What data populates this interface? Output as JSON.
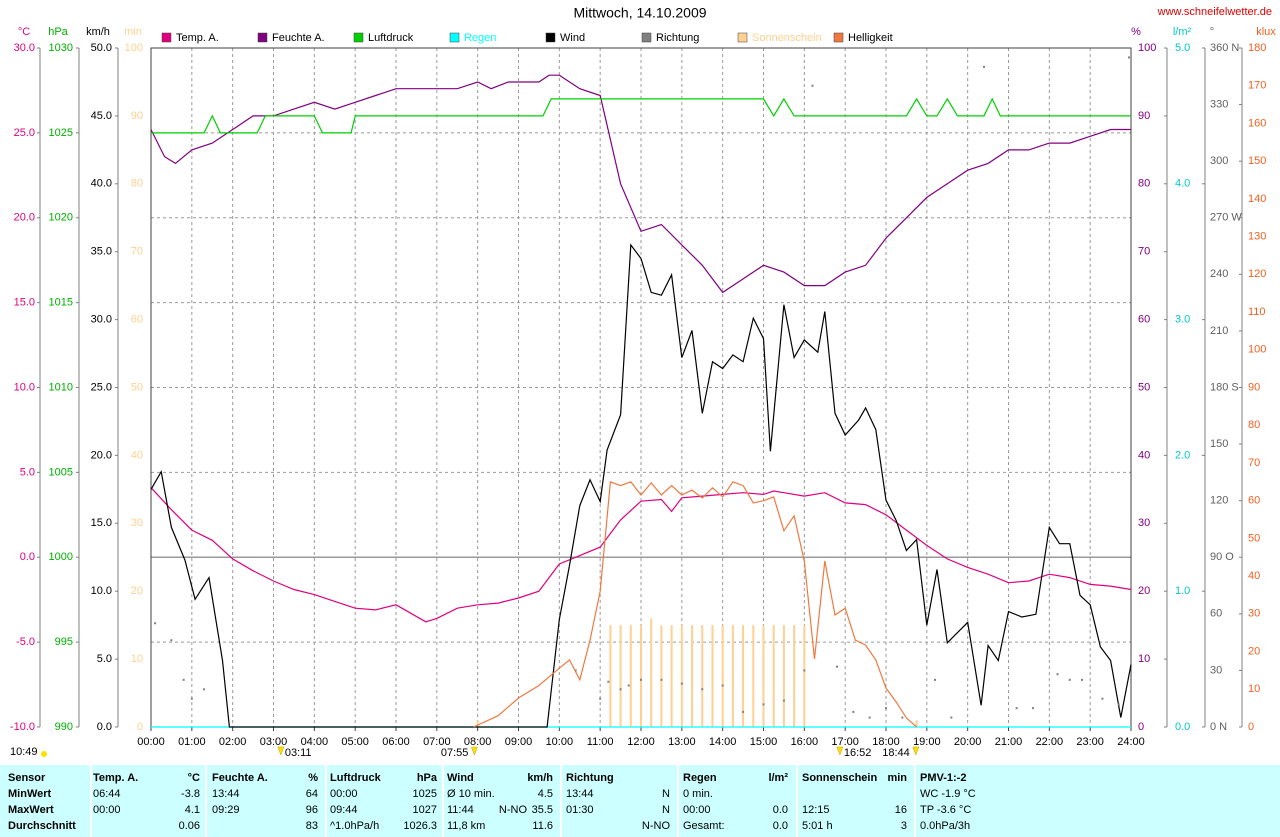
{
  "chart_data": {
    "type": "line",
    "title": "Mittwoch, 14.10.2009",
    "source": "www.schneifelwetter.de",
    "day_length": "10:49",
    "xlim": [
      0,
      24
    ],
    "xticks": [
      {
        "value": 0,
        "label": "00:00"
      },
      {
        "value": 1,
        "label": "01:00"
      },
      {
        "value": 2,
        "label": "02:00"
      },
      {
        "value": 3,
        "label": "03:00"
      },
      {
        "value": 4,
        "label": "04:00"
      },
      {
        "value": 5,
        "label": "05:00"
      },
      {
        "value": 6,
        "label": "06:00"
      },
      {
        "value": 7,
        "label": "07:00"
      },
      {
        "value": 8,
        "label": "08:00"
      },
      {
        "value": 9,
        "label": "09:00"
      },
      {
        "value": 10,
        "label": "10:00"
      },
      {
        "value": 11,
        "label": "11:00"
      },
      {
        "value": 12,
        "label": "12:00"
      },
      {
        "value": 13,
        "label": "13:00"
      },
      {
        "value": 14,
        "label": "14:00"
      },
      {
        "value": 15,
        "label": "15:00"
      },
      {
        "value": 16,
        "label": "16:00"
      },
      {
        "value": 17,
        "label": "17:00"
      },
      {
        "value": 18,
        "label": "18:00"
      },
      {
        "value": 19,
        "label": "19:00"
      },
      {
        "value": 20,
        "label": "20:00"
      },
      {
        "value": 21,
        "label": "21:00"
      },
      {
        "value": 22,
        "label": "22:00"
      },
      {
        "value": 23,
        "label": "23:00"
      },
      {
        "value": 24,
        "label": "24:00"
      }
    ],
    "grid": true,
    "grid_axis": "temp",
    "axes": [
      {
        "id": "temp",
        "label": "°C",
        "color": "#e0007f",
        "ylim": [
          -10,
          30
        ],
        "yticks": [
          {
            "value": -10,
            "label": "-10.0"
          },
          {
            "value": -5,
            "label": "-5.0"
          },
          {
            "value": 0,
            "label": "0.0"
          },
          {
            "value": 5,
            "label": "5.0"
          },
          {
            "value": 10,
            "label": "10.0"
          },
          {
            "value": 15,
            "label": "15.0"
          },
          {
            "value": 20,
            "label": "20.0"
          },
          {
            "value": 25,
            "label": "25.0"
          },
          {
            "value": 30,
            "label": "30.0"
          }
        ]
      },
      {
        "id": "hpa",
        "label": "hPa",
        "color": "#00b000",
        "ylim": [
          990,
          1030
        ],
        "yticks": [
          990,
          995,
          1000,
          1005,
          1010,
          1015,
          1020,
          1025,
          1030
        ]
      },
      {
        "id": "kmh",
        "label": "km/h",
        "color": "#000000",
        "ylim": [
          0,
          50
        ],
        "yticks": [
          {
            "value": 0,
            "label": "0.0"
          },
          {
            "value": 5,
            "label": "5.0"
          },
          {
            "value": 10,
            "label": "10.0"
          },
          {
            "value": 15,
            "label": "15.0"
          },
          {
            "value": 20,
            "label": "20.0"
          },
          {
            "value": 25,
            "label": "25.0"
          },
          {
            "value": 30,
            "label": "30.0"
          },
          {
            "value": 35,
            "label": "35.0"
          },
          {
            "value": 40,
            "label": "40.0"
          },
          {
            "value": 45,
            "label": "45.0"
          },
          {
            "value": 50,
            "label": "50.0"
          }
        ]
      },
      {
        "id": "min",
        "label": "min",
        "color": "#ffd090",
        "ylim": [
          0,
          100
        ],
        "yticks": [
          0,
          10,
          20,
          30,
          40,
          50,
          60,
          70,
          80,
          90,
          100
        ]
      },
      {
        "id": "pct",
        "label": "%",
        "color": "#800080",
        "ylim": [
          0,
          100
        ],
        "yticks": [
          0,
          10,
          20,
          30,
          40,
          50,
          60,
          70,
          80,
          90,
          100
        ]
      },
      {
        "id": "rain",
        "label": "l/m²",
        "color": "#00c8c8",
        "ylim": [
          0,
          5
        ],
        "yticks": [
          {
            "value": 0,
            "label": "0.0"
          },
          {
            "value": 1,
            "label": "1.0"
          },
          {
            "value": 2,
            "label": "2.0"
          },
          {
            "value": 3,
            "label": "3.0"
          },
          {
            "value": 4,
            "label": "4.0"
          },
          {
            "value": 5,
            "label": "5.0"
          }
        ]
      },
      {
        "id": "dir",
        "label": "°",
        "color": "#606060",
        "ylim": [
          0,
          360
        ],
        "yticks": [
          {
            "value": 0,
            "label": "0 N"
          },
          30,
          60,
          {
            "value": 90,
            "label": "90 O"
          },
          120,
          150,
          {
            "value": 180,
            "label": "180 S"
          },
          210,
          240,
          {
            "value": 270,
            "label": "270 W"
          },
          300,
          330,
          {
            "value": 360,
            "label": "360 N"
          }
        ]
      },
      {
        "id": "klux",
        "label": "klux",
        "color": "#f06020",
        "ylim": [
          0,
          180
        ],
        "yticks": [
          0,
          10,
          20,
          30,
          40,
          50,
          60,
          70,
          80,
          90,
          100,
          110,
          120,
          130,
          140,
          150,
          160,
          170,
          180
        ]
      }
    ],
    "series": [
      {
        "name": "Temp. A.",
        "color": "#e0007f",
        "axis": "temp",
        "kind": "line",
        "x": [
          0,
          0.5,
          1,
          1.5,
          2,
          2.5,
          3,
          3.5,
          4,
          4.5,
          5,
          5.5,
          6,
          6.73,
          7,
          7.5,
          8,
          8.5,
          9,
          9.5,
          10,
          10.5,
          11,
          11.5,
          12,
          12.5,
          12.75,
          13,
          13.5,
          14,
          14.5,
          15,
          15.25,
          15.5,
          16,
          16.5,
          17,
          17.5,
          18,
          18.5,
          19,
          19.5,
          20,
          20.5,
          21,
          21.5,
          22,
          22.5,
          23,
          23.5,
          24
        ],
        "values": [
          4.1,
          2.8,
          1.6,
          1.0,
          -0.1,
          -0.8,
          -1.4,
          -1.9,
          -2.2,
          -2.6,
          -3.0,
          -3.1,
          -2.8,
          -3.8,
          -3.6,
          -3.0,
          -2.8,
          -2.7,
          -2.4,
          -2.0,
          -0.4,
          0.1,
          0.6,
          2.2,
          3.3,
          3.4,
          2.7,
          3.5,
          3.6,
          3.7,
          3.8,
          3.7,
          3.9,
          3.8,
          3.6,
          3.8,
          3.2,
          3.1,
          2.5,
          1.6,
          0.7,
          -0.1,
          -0.6,
          -1.0,
          -1.5,
          -1.4,
          -1.0,
          -1.2,
          -1.6,
          -1.7,
          -1.9
        ]
      },
      {
        "name": "Feuchte A.",
        "color": "#800080",
        "axis": "pct",
        "kind": "line",
        "x": [
          0,
          0.33,
          0.6,
          1,
          1.5,
          2,
          2.5,
          3,
          3.5,
          4,
          4.5,
          5,
          5.5,
          6,
          6.5,
          7,
          7.5,
          8,
          8.33,
          8.75,
          9.5,
          9.75,
          10,
          10.5,
          11,
          11.5,
          12,
          12.5,
          13,
          13.5,
          14,
          14.5,
          15,
          15.5,
          16,
          16.5,
          17,
          17.5,
          18,
          18.5,
          19,
          19.5,
          20,
          20.5,
          21,
          21.5,
          22,
          22.5,
          23,
          23.5,
          24
        ],
        "values": [
          88,
          84,
          83,
          85,
          86,
          88,
          90,
          90,
          91,
          92,
          91,
          92,
          93,
          94,
          94,
          94,
          94,
          95,
          94,
          95,
          95,
          96,
          96,
          94,
          93,
          80,
          73,
          74,
          71,
          68,
          64,
          66,
          68,
          67,
          65,
          65,
          67,
          68,
          72,
          75,
          78,
          80,
          82,
          83,
          85,
          85,
          86,
          86,
          87,
          88,
          88
        ]
      },
      {
        "name": "Luftdruck",
        "color": "#00d000",
        "axis": "hpa",
        "kind": "line",
        "x": [
          0,
          1.3,
          1.5,
          1.7,
          2.6,
          2.8,
          4.0,
          4.2,
          4.9,
          5.0,
          9.6,
          9.8,
          15.0,
          15.25,
          15.5,
          15.75,
          18.5,
          18.75,
          19.0,
          19.25,
          19.5,
          19.75,
          20.4,
          20.6,
          20.8,
          24
        ],
        "values": [
          1025,
          1025,
          1026,
          1025,
          1025,
          1026,
          1026,
          1025,
          1025,
          1026,
          1026,
          1027,
          1027,
          1026,
          1027,
          1026,
          1026,
          1027,
          1026,
          1026,
          1027,
          1026,
          1026,
          1027,
          1026,
          1026
        ]
      },
      {
        "name": "Regen",
        "color": "#00ffff",
        "axis": "rain",
        "kind": "line",
        "x": [
          0,
          24
        ],
        "values": [
          0,
          0
        ]
      },
      {
        "name": "Wind",
        "color": "#000000",
        "axis": "kmh",
        "kind": "line",
        "x": [
          0,
          0.25,
          0.5,
          0.83,
          1.08,
          1.42,
          1.75,
          1.92,
          9.7,
          10,
          10.25,
          10.5,
          10.75,
          11,
          11.17,
          11.5,
          11.75,
          12,
          12.25,
          12.5,
          12.75,
          13,
          13.25,
          13.5,
          13.75,
          14,
          14.25,
          14.5,
          14.75,
          15,
          15.17,
          15.5,
          15.75,
          16,
          16.33,
          16.5,
          16.75,
          17,
          17.33,
          17.5,
          17.75,
          18,
          18.25,
          18.5,
          18.75,
          19,
          19.25,
          19.5,
          20,
          20.33,
          20.5,
          20.75,
          21,
          21.33,
          21.67,
          22,
          22.25,
          22.5,
          22.75,
          23,
          23.25,
          23.5,
          23.75,
          24
        ],
        "values": [
          17.5,
          18.8,
          14.7,
          12.3,
          9.4,
          11,
          4.9,
          0,
          0,
          7.9,
          11.9,
          16.3,
          18.2,
          16.6,
          20.4,
          23,
          35.5,
          34.5,
          32,
          31.8,
          33.3,
          27.2,
          29.2,
          23.1,
          26.9,
          26.4,
          27.4,
          26.9,
          30.1,
          28.6,
          20.3,
          31.1,
          27.2,
          28.5,
          27.6,
          30.6,
          23.1,
          21.5,
          22.6,
          23.5,
          21.9,
          16.7,
          15.2,
          13,
          13.8,
          7.5,
          11.6,
          6.2,
          7.7,
          1.6,
          6,
          4.9,
          8.5,
          8.1,
          8.3,
          14.7,
          13.5,
          13.5,
          9.7,
          9,
          5.9,
          4.9,
          0.7,
          4.6
        ]
      },
      {
        "name": "Richtung",
        "color": "#808080",
        "axis": "dir",
        "kind": "dots",
        "x": [
          0.1,
          0.5,
          0.8,
          1.0,
          1.3,
          10.4,
          11.0,
          11.2,
          11.5,
          11.7,
          12.0,
          12.5,
          13.0,
          13.5,
          14.0,
          14.5,
          15.0,
          15.5,
          16.0,
          16.2,
          16.8,
          17.2,
          17.6,
          18.0,
          18.4,
          19.2,
          19.6,
          20.4,
          21.2,
          21.6,
          22.2,
          22.5,
          22.8,
          23.3,
          23.7,
          23.95
        ],
        "values": [
          55,
          46,
          25,
          15,
          20,
          30,
          15,
          24,
          20,
          22,
          25,
          25,
          23,
          20,
          22,
          8,
          12,
          14,
          30,
          340,
          32,
          8,
          5,
          10,
          5,
          25,
          5,
          350,
          10,
          10,
          28,
          25,
          25,
          15,
          12,
          355
        ]
      },
      {
        "name": "Sonnenschein",
        "color": "#ffd090",
        "axis": "min",
        "kind": "bar",
        "x": [
          8,
          11.25,
          11.5,
          11.75,
          12,
          12.25,
          12.5,
          12.75,
          13,
          13.25,
          13.5,
          13.75,
          14,
          14.25,
          14.5,
          14.75,
          15,
          15.25,
          15.5,
          15.75,
          16,
          18.75
        ],
        "values": [
          1,
          15,
          15,
          15,
          15,
          16,
          15,
          15,
          15,
          15,
          15,
          15,
          15,
          15,
          15,
          15,
          15,
          15,
          15,
          15,
          15,
          1
        ]
      },
      {
        "name": "Helligkeit",
        "color": "#f07840",
        "axis": "klux",
        "kind": "line",
        "x": [
          7.9,
          8.5,
          9,
          9.5,
          10,
          10.25,
          10.5,
          10.75,
          11,
          11.25,
          11.5,
          11.75,
          12,
          12.25,
          12.5,
          12.75,
          13,
          13.25,
          13.5,
          13.75,
          14,
          14.25,
          14.5,
          14.75,
          15,
          15.25,
          15.5,
          15.75,
          16,
          16.25,
          16.5,
          16.75,
          17,
          17.25,
          17.5,
          17.75,
          18,
          18.25,
          18.5,
          18.75
        ],
        "values": [
          0,
          3,
          7.7,
          11,
          15.6,
          17.8,
          12.5,
          23,
          36,
          65,
          64,
          65,
          61.5,
          64.7,
          61.5,
          64,
          61.5,
          62.8,
          60.7,
          63.4,
          61,
          65,
          64,
          59.4,
          60,
          61,
          52,
          56,
          44,
          18,
          44,
          29.7,
          31.5,
          23,
          21.7,
          17.8,
          10.3,
          6.6,
          2.4,
          0
        ]
      }
    ],
    "annotations": [
      {
        "x": 3.18,
        "text": "03:11"
      },
      {
        "x": 7.92,
        "text": "07:55"
      },
      {
        "x": 16.87,
        "text": "16:52"
      },
      {
        "x": 18.73,
        "text": "18:44"
      }
    ]
  },
  "table": {
    "header": [
      {
        "left": "Sensor"
      },
      {
        "left": "Temp. A.",
        "right": "°C"
      },
      {
        "left": "Feuchte A.",
        "right": "%"
      },
      {
        "left": "Luftdruck",
        "right": "hPa"
      },
      {
        "left": "Wind",
        "right": "km/h"
      },
      {
        "left": "Richtung"
      },
      {
        "left": "Regen",
        "right": "l/m²"
      },
      {
        "left": "Sonnenschein",
        "right": "min"
      },
      {
        "left": "PMV-1:-2"
      }
    ],
    "rows": [
      [
        {
          "left": "MinWert"
        },
        {
          "left": "06:44",
          "right": "-3.8"
        },
        {
          "left": "13:44",
          "right": "64"
        },
        {
          "left": "00:00",
          "right": "1025"
        },
        {
          "left": "Ø 10 min.",
          "right": "4.5"
        },
        {
          "left": "13:44",
          "right": "N"
        },
        {
          "left": "0 min."
        },
        {},
        {
          "left": "WC -1.9 °C"
        }
      ],
      [
        {
          "left": "MaxWert"
        },
        {
          "left": "00:00",
          "right": "4.1"
        },
        {
          "left": "09:29",
          "right": "96"
        },
        {
          "left": "09:44",
          "right": "1027"
        },
        {
          "left": "11:44",
          "mid": "N-NO",
          "right": "35.5"
        },
        {
          "left": "01:30",
          "right": "N"
        },
        {
          "left": "00:00",
          "right": "0.0"
        },
        {
          "left": "12:15",
          "right": "16"
        },
        {
          "left": "TP -3.6 °C"
        }
      ],
      [
        {
          "left": "Durchschnitt"
        },
        {
          "right": "0.06"
        },
        {
          "right": "83"
        },
        {
          "left": "^1.0hPa/h",
          "right": "1026.3"
        },
        {
          "left": "11,8 km",
          "right": "11.6"
        },
        {
          "right": "N-NO"
        },
        {
          "left": "Gesamt:",
          "right": "0.0"
        },
        {
          "left": "5:01 h",
          "right": "3"
        },
        {
          "left": "0.0hPa/3h"
        }
      ]
    ]
  }
}
